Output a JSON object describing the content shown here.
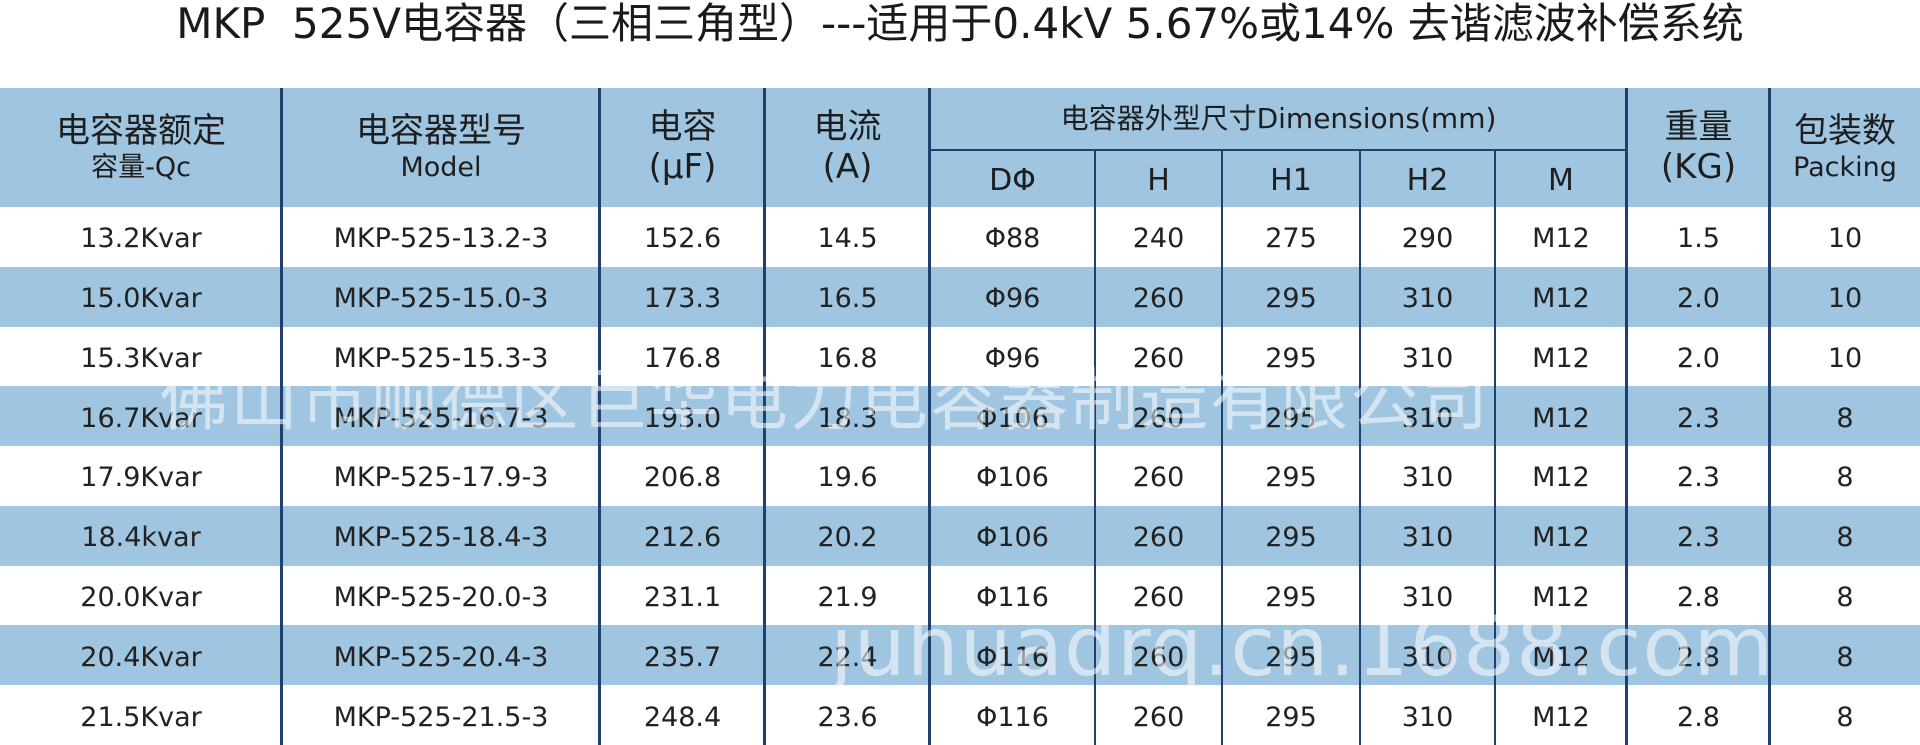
{
  "title": "MKP  525V电容器（三相三角型）---适用于0.4kV 5.67%或14% 去谐滤波补偿系统",
  "table": {
    "header": {
      "spanning": [
        [
          "电容器额定",
          "容量-Qc"
        ],
        [
          "电容器型号",
          "Model"
        ],
        [
          "电容",
          "(μF)"
        ],
        [
          "电流",
          "(A)"
        ]
      ],
      "dimensions": "电容器外型尺寸Dimensions(mm)",
      "dimension_columns": [
        "DΦ",
        "H",
        "H1",
        "H2",
        "M"
      ],
      "tail": [
        [
          "重量",
          "(KG)"
        ],
        [
          "包装数",
          "Packing"
        ]
      ]
    },
    "rows": [
      [
        "13.2Kvar",
        "MKP-525-13.2-3",
        "152.6",
        "14.5",
        "Φ88",
        "240",
        "275",
        "290",
        "M12",
        "1.5",
        "10"
      ],
      [
        "15.0Kvar",
        "MKP-525-15.0-3",
        "173.3",
        "16.5",
        "Φ96",
        "260",
        "295",
        "310",
        "M12",
        "2.0",
        "10"
      ],
      [
        "15.3Kvar",
        "MKP-525-15.3-3",
        "176.8",
        "16.8",
        "Φ96",
        "260",
        "295",
        "310",
        "M12",
        "2.0",
        "10"
      ],
      [
        "16.7Kvar",
        "MKP-525-16.7-3",
        "193.0",
        "18.3",
        "Φ106",
        "260",
        "295",
        "310",
        "M12",
        "2.3",
        "8"
      ],
      [
        "17.9Kvar",
        "MKP-525-17.9-3",
        "206.8",
        "19.6",
        "Φ106",
        "260",
        "295",
        "310",
        "M12",
        "2.3",
        "8"
      ],
      [
        "18.4kvar",
        "MKP-525-18.4-3",
        "212.6",
        "20.2",
        "Φ106",
        "260",
        "295",
        "310",
        "M12",
        "2.3",
        "8"
      ],
      [
        "20.0Kvar",
        "MKP-525-20.0-3",
        "231.1",
        "21.9",
        "Φ116",
        "260",
        "295",
        "310",
        "M12",
        "2.8",
        "8"
      ],
      [
        "20.4Kvar",
        "MKP-525-20.4-3",
        "235.7",
        "22.4",
        "Φ116",
        "260",
        "295",
        "310",
        "M12",
        "2.8",
        "8"
      ],
      [
        "21.5Kvar",
        "MKP-525-21.5-3",
        "248.4",
        "23.6",
        "Φ116",
        "260",
        "295",
        "310",
        "M12",
        "2.8",
        "8"
      ]
    ]
  },
  "watermarks": [
    "佛山市顺德区巨华电力电容器制造有限公司",
    "juhuadrq.cn.1688.com"
  ]
}
